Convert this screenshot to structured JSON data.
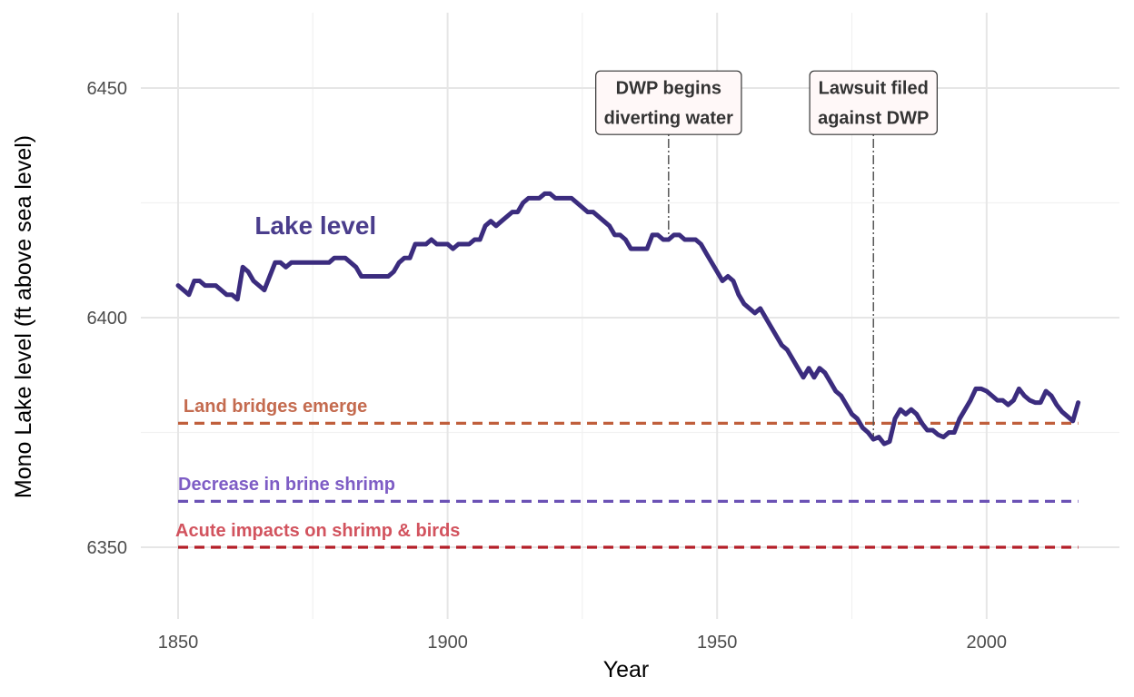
{
  "chart_data": {
    "type": "line",
    "xlabel": "Year",
    "ylabel": "Mono Lake level (ft above sea level)",
    "xlim": [
      1850,
      2017
    ],
    "ylim": [
      6350,
      6450
    ],
    "x_ticks": [
      1850,
      1900,
      1950,
      2000
    ],
    "y_ticks": [
      6350,
      6400,
      6450
    ],
    "grid": true,
    "series": [
      {
        "name": "Lake level",
        "color": "#3b2c7e",
        "points": [
          [
            1850,
            6407
          ],
          [
            1852,
            6405
          ],
          [
            1853,
            6408
          ],
          [
            1854,
            6408
          ],
          [
            1855,
            6407
          ],
          [
            1857,
            6407
          ],
          [
            1859,
            6405
          ],
          [
            1860,
            6405
          ],
          [
            1861,
            6404
          ],
          [
            1862,
            6411
          ],
          [
            1863,
            6410
          ],
          [
            1864,
            6408
          ],
          [
            1866,
            6406
          ],
          [
            1868,
            6412
          ],
          [
            1869,
            6412
          ],
          [
            1870,
            6411
          ],
          [
            1871,
            6412
          ],
          [
            1873,
            6412
          ],
          [
            1876,
            6412
          ],
          [
            1878,
            6412
          ],
          [
            1879,
            6413
          ],
          [
            1881,
            6413
          ],
          [
            1883,
            6411
          ],
          [
            1884,
            6409
          ],
          [
            1886,
            6409
          ],
          [
            1888,
            6409
          ],
          [
            1889,
            6409
          ],
          [
            1890,
            6410
          ],
          [
            1891,
            6412
          ],
          [
            1892,
            6413
          ],
          [
            1893,
            6413
          ],
          [
            1894,
            6416
          ],
          [
            1896,
            6416
          ],
          [
            1897,
            6417
          ],
          [
            1898,
            6416
          ],
          [
            1900,
            6416
          ],
          [
            1901,
            6415
          ],
          [
            1902,
            6416
          ],
          [
            1904,
            6416
          ],
          [
            1905,
            6417
          ],
          [
            1906,
            6417
          ],
          [
            1907,
            6420
          ],
          [
            1908,
            6421
          ],
          [
            1909,
            6420
          ],
          [
            1910,
            6421
          ],
          [
            1912,
            6423
          ],
          [
            1913,
            6423
          ],
          [
            1914,
            6425
          ],
          [
            1915,
            6426
          ],
          [
            1917,
            6426
          ],
          [
            1918,
            6427
          ],
          [
            1919,
            6427
          ],
          [
            1920,
            6426
          ],
          [
            1922,
            6426
          ],
          [
            1923,
            6426
          ],
          [
            1924,
            6425
          ],
          [
            1926,
            6423
          ],
          [
            1927,
            6423
          ],
          [
            1929,
            6421
          ],
          [
            1930,
            6420
          ],
          [
            1931,
            6418
          ],
          [
            1932,
            6418
          ],
          [
            1933,
            6417
          ],
          [
            1934,
            6415
          ],
          [
            1935,
            6415
          ],
          [
            1937,
            6415
          ],
          [
            1938,
            6418
          ],
          [
            1939,
            6418
          ],
          [
            1940,
            6417
          ],
          [
            1941,
            6417
          ],
          [
            1942,
            6418
          ],
          [
            1943,
            6418
          ],
          [
            1944,
            6417
          ],
          [
            1946,
            6417
          ],
          [
            1947,
            6416
          ],
          [
            1948,
            6414
          ],
          [
            1950,
            6410
          ],
          [
            1951,
            6408
          ],
          [
            1952,
            6409
          ],
          [
            1953,
            6408
          ],
          [
            1954,
            6405
          ],
          [
            1955,
            6403
          ],
          [
            1956,
            6402
          ],
          [
            1957,
            6401
          ],
          [
            1958,
            6402
          ],
          [
            1960,
            6398
          ],
          [
            1962,
            6394
          ],
          [
            1963,
            6393
          ],
          [
            1965,
            6389
          ],
          [
            1966,
            6387
          ],
          [
            1967,
            6389
          ],
          [
            1968,
            6387
          ],
          [
            1969,
            6389
          ],
          [
            1970,
            6388
          ],
          [
            1971,
            6386
          ],
          [
            1972,
            6384
          ],
          [
            1973,
            6383
          ],
          [
            1974,
            6381
          ],
          [
            1975,
            6379
          ],
          [
            1976,
            6378
          ],
          [
            1977,
            6376
          ],
          [
            1978,
            6375
          ],
          [
            1979,
            6373.5
          ],
          [
            1980,
            6374
          ],
          [
            1981,
            6372.5
          ],
          [
            1982,
            6373
          ],
          [
            1983,
            6378
          ],
          [
            1984,
            6380
          ],
          [
            1985,
            6379
          ],
          [
            1986,
            6380
          ],
          [
            1987,
            6379
          ],
          [
            1988,
            6377
          ],
          [
            1989,
            6375.5
          ],
          [
            1990,
            6375.5
          ],
          [
            1991,
            6374.5
          ],
          [
            1992,
            6374
          ],
          [
            1993,
            6375
          ],
          [
            1994,
            6375
          ],
          [
            1995,
            6378
          ],
          [
            1996,
            6380
          ],
          [
            1997,
            6382
          ],
          [
            1998,
            6384.5
          ],
          [
            1999,
            6384.5
          ],
          [
            2000,
            6384
          ],
          [
            2001,
            6383
          ],
          [
            2002,
            6382
          ],
          [
            2003,
            6382
          ],
          [
            2004,
            6381
          ],
          [
            2005,
            6382
          ],
          [
            2006,
            6384.5
          ],
          [
            2007,
            6383
          ],
          [
            2008,
            6382
          ],
          [
            2009,
            6381.5
          ],
          [
            2010,
            6381.5
          ],
          [
            2011,
            6384
          ],
          [
            2012,
            6383
          ],
          [
            2013,
            6381
          ],
          [
            2014,
            6379.5
          ],
          [
            2015,
            6378.5
          ],
          [
            2016,
            6377.5
          ],
          [
            2017,
            6381.5
          ]
        ]
      }
    ],
    "series_label": {
      "text": "Lake level",
      "x": 1875.5,
      "y": 6420.2,
      "color": "#4a3d8c"
    },
    "reference_lines": [
      {
        "label": "Land bridges emerge",
        "y": 6377,
        "x_start": 1850,
        "x_end": 2017,
        "line_color": "#c05f3c",
        "label_color": "#c46b4f",
        "label_x": 1851,
        "label_y": 6380.8
      },
      {
        "label": "Decrease in brine shrimp",
        "y": 6360,
        "x_start": 1850,
        "x_end": 2017,
        "line_color": "#6b52b5",
        "label_color": "#7e5dc5",
        "label_x": 1850,
        "label_y": 6363.8
      },
      {
        "label": "Acute impacts on shrimp & birds",
        "y": 6350,
        "x_start": 1850,
        "x_end": 2017,
        "line_color": "#b41e28",
        "label_color": "#d2535e",
        "label_x": 1849.5,
        "label_y": 6353.8
      }
    ],
    "annotations": [
      {
        "lines": [
          "DWP begins",
          "diverting water"
        ],
        "x": 1941,
        "label_y": 6446.8,
        "line_y_top": 6442.5,
        "line_y_bottom": 6418
      },
      {
        "lines": [
          "Lawsuit filed",
          "against DWP"
        ],
        "x": 1979,
        "label_y": 6446.8,
        "line_y_top": 6442.5,
        "line_y_bottom": 6374
      }
    ]
  }
}
